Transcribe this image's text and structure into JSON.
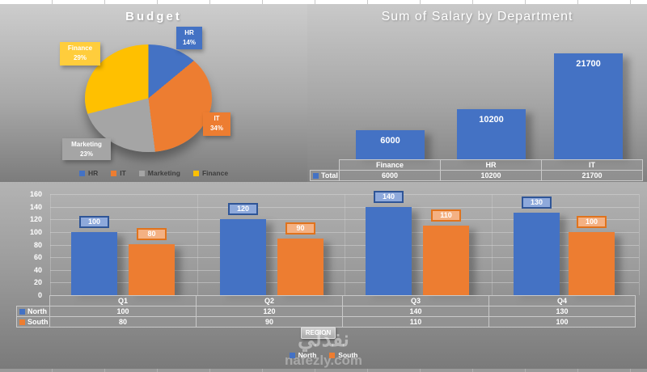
{
  "watermark": {
    "arabic": "نفذلي",
    "domain": "nafezly.com"
  },
  "chart_data": [
    {
      "id": "budget-pie",
      "type": "pie",
      "title": "Budget",
      "categories": [
        "HR",
        "IT",
        "Marketing",
        "Finance"
      ],
      "values": [
        14,
        34,
        23,
        29
      ],
      "value_labels": [
        "14%",
        "34%",
        "23%",
        "29%"
      ],
      "colors": [
        "#4472C4",
        "#ED7D31",
        "#A5A5A5",
        "#FFC000"
      ],
      "label_box_colors": [
        "#4472C4",
        "#ED7D31",
        "#A5A5A5",
        "#FFCD3C"
      ],
      "legend": [
        "HR",
        "IT",
        "Marketing",
        "Finance"
      ],
      "legend_position": "bottom"
    },
    {
      "id": "salary-by-department",
      "type": "bar",
      "title": "Sum of Salary by Department",
      "categories": [
        "Finance",
        "HR",
        "IT"
      ],
      "series": [
        {
          "name": "Total",
          "values": [
            6000,
            10200,
            21700
          ]
        }
      ],
      "bar_color": "#4472C4",
      "legend_color": "#4472C4",
      "data_table": {
        "columns": [
          "Finance",
          "HR",
          "IT"
        ],
        "rows": [
          {
            "header": "Total",
            "values": [
              "6000",
              "10200",
              "21700"
            ]
          }
        ]
      }
    },
    {
      "id": "region-quarters",
      "type": "bar",
      "categories": [
        "Q1",
        "Q2",
        "Q3",
        "Q4"
      ],
      "series": [
        {
          "name": "North",
          "values": [
            100,
            120,
            140,
            130
          ],
          "color": "#4472C4",
          "label_fill": "#8EA9DB",
          "label_border": "#2F5597"
        },
        {
          "name": "South",
          "values": [
            80,
            90,
            110,
            100
          ],
          "color": "#ED7D31",
          "label_fill": "#F4B183",
          "label_border": "#E0731D"
        }
      ],
      "ylim": [
        0,
        160
      ],
      "ytick_step": 20,
      "yticks": [
        "0",
        "20",
        "40",
        "60",
        "80",
        "100",
        "120",
        "140",
        "160"
      ],
      "grid": true,
      "field_button": "REGION",
      "legend": [
        "North",
        "South"
      ],
      "legend_position": "bottom",
      "data_table": {
        "columns": [
          "Q1",
          "Q2",
          "Q3",
          "Q4"
        ],
        "rows": [
          {
            "header": "North",
            "values": [
              "100",
              "120",
              "140",
              "130"
            ]
          },
          {
            "header": "South",
            "values": [
              "80",
              "90",
              "110",
              "100"
            ]
          }
        ]
      }
    }
  ]
}
